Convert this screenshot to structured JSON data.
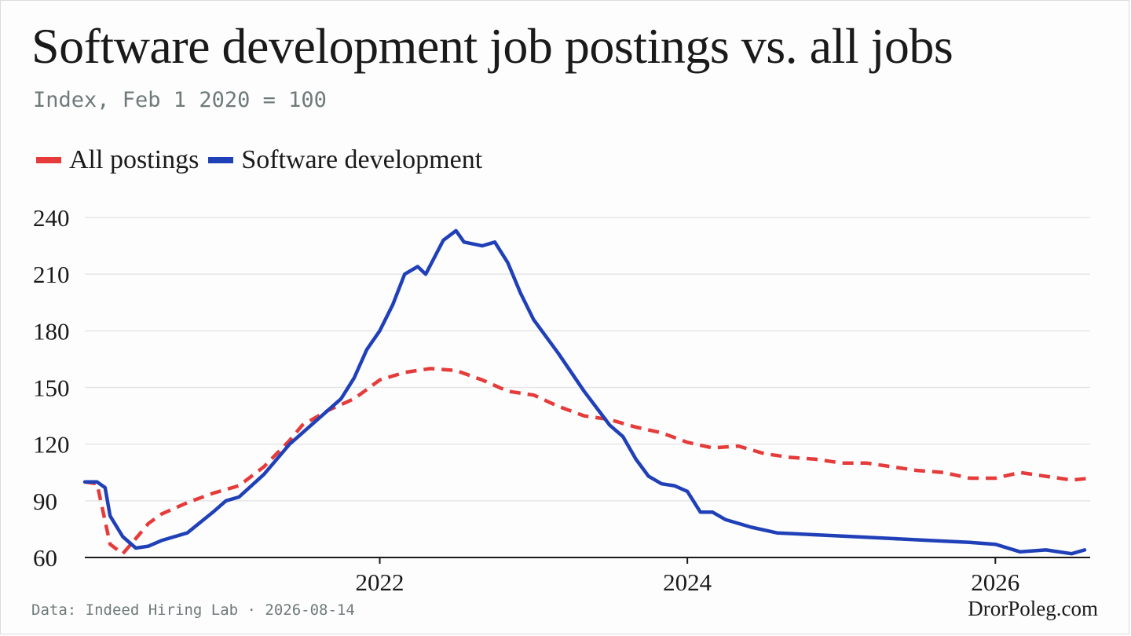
{
  "colors": {
    "all_postings": "#e63b3b",
    "software": "#2040b8",
    "grid": "#e6e6e6",
    "axis": "#1a1a1a"
  },
  "chart_data": {
    "type": "line",
    "title": "Software development job postings vs. all jobs",
    "subtitle": "Index, Feb 1 2020 = 100",
    "legend_placement": "top-left",
    "grid": true,
    "ylim": [
      60,
      240
    ],
    "xlim": [
      "2020-02-01",
      "2026-08-14"
    ],
    "y_ticks": [
      "60",
      "90",
      "120",
      "150",
      "180",
      "210",
      "240"
    ],
    "x_ticks": [
      {
        "date": "2022-01-01",
        "label": "2022"
      },
      {
        "date": "2024-01-01",
        "label": "2024"
      },
      {
        "date": "2026-01-01",
        "label": "2026"
      }
    ],
    "series": [
      {
        "name": "All postings",
        "style": "dashed",
        "color": "#e63b3b",
        "points": [
          [
            "2020-02-01",
            100
          ],
          [
            "2020-03-01",
            99
          ],
          [
            "2020-04-01",
            67
          ],
          [
            "2020-05-01",
            62
          ],
          [
            "2020-06-01",
            70
          ],
          [
            "2020-07-01",
            78
          ],
          [
            "2020-08-01",
            83
          ],
          [
            "2020-10-01",
            89
          ],
          [
            "2020-12-01",
            94
          ],
          [
            "2021-02-01",
            98
          ],
          [
            "2021-04-01",
            108
          ],
          [
            "2021-06-01",
            122
          ],
          [
            "2021-07-01",
            130
          ],
          [
            "2021-09-01",
            138
          ],
          [
            "2021-11-01",
            144
          ],
          [
            "2022-01-01",
            154
          ],
          [
            "2022-03-01",
            158
          ],
          [
            "2022-05-01",
            160
          ],
          [
            "2022-07-01",
            159
          ],
          [
            "2022-09-01",
            154
          ],
          [
            "2022-11-01",
            148
          ],
          [
            "2023-01-01",
            146
          ],
          [
            "2023-03-01",
            140
          ],
          [
            "2023-05-01",
            135
          ],
          [
            "2023-07-01",
            133
          ],
          [
            "2023-09-01",
            129
          ],
          [
            "2023-11-01",
            126
          ],
          [
            "2024-01-01",
            121
          ],
          [
            "2024-03-01",
            118
          ],
          [
            "2024-05-01",
            119
          ],
          [
            "2024-07-01",
            115
          ],
          [
            "2024-09-01",
            113
          ],
          [
            "2024-11-01",
            112
          ],
          [
            "2025-01-01",
            110
          ],
          [
            "2025-03-01",
            110
          ],
          [
            "2025-05-01",
            108
          ],
          [
            "2025-07-01",
            106
          ],
          [
            "2025-09-01",
            105
          ],
          [
            "2025-11-01",
            102
          ],
          [
            "2026-01-01",
            102
          ],
          [
            "2026-03-01",
            105
          ],
          [
            "2026-05-01",
            103
          ],
          [
            "2026-07-01",
            101
          ],
          [
            "2026-08-14",
            102
          ]
        ]
      },
      {
        "name": "Software development",
        "style": "solid",
        "color": "#2040b8",
        "points": [
          [
            "2020-02-01",
            100
          ],
          [
            "2020-03-01",
            100
          ],
          [
            "2020-03-20",
            97
          ],
          [
            "2020-04-01",
            82
          ],
          [
            "2020-05-01",
            71
          ],
          [
            "2020-06-01",
            65
          ],
          [
            "2020-07-01",
            66
          ],
          [
            "2020-08-01",
            69
          ],
          [
            "2020-10-01",
            73
          ],
          [
            "2020-12-01",
            84
          ],
          [
            "2021-01-01",
            90
          ],
          [
            "2021-02-01",
            92
          ],
          [
            "2021-04-01",
            104
          ],
          [
            "2021-06-01",
            120
          ],
          [
            "2021-08-01",
            132
          ],
          [
            "2021-10-01",
            144
          ],
          [
            "2021-11-01",
            155
          ],
          [
            "2021-12-01",
            170
          ],
          [
            "2022-01-01",
            180
          ],
          [
            "2022-02-01",
            194
          ],
          [
            "2022-03-01",
            210
          ],
          [
            "2022-04-01",
            214
          ],
          [
            "2022-04-20",
            210
          ],
          [
            "2022-06-01",
            228
          ],
          [
            "2022-07-01",
            233
          ],
          [
            "2022-07-20",
            227
          ],
          [
            "2022-09-01",
            225
          ],
          [
            "2022-10-01",
            227
          ],
          [
            "2022-11-01",
            216
          ],
          [
            "2022-12-01",
            200
          ],
          [
            "2023-01-01",
            186
          ],
          [
            "2023-03-01",
            168
          ],
          [
            "2023-05-01",
            148
          ],
          [
            "2023-07-01",
            130
          ],
          [
            "2023-08-01",
            124
          ],
          [
            "2023-09-01",
            112
          ],
          [
            "2023-10-01",
            103
          ],
          [
            "2023-11-01",
            99
          ],
          [
            "2023-12-01",
            98
          ],
          [
            "2024-01-01",
            95
          ],
          [
            "2024-02-01",
            84
          ],
          [
            "2024-03-01",
            84
          ],
          [
            "2024-04-01",
            80
          ],
          [
            "2024-06-01",
            76
          ],
          [
            "2024-08-01",
            73
          ],
          [
            "2024-11-01",
            72
          ],
          [
            "2025-02-01",
            71
          ],
          [
            "2025-05-01",
            70
          ],
          [
            "2025-08-01",
            69
          ],
          [
            "2025-11-01",
            68
          ],
          [
            "2026-01-01",
            67
          ],
          [
            "2026-03-01",
            63
          ],
          [
            "2026-05-01",
            64
          ],
          [
            "2026-07-01",
            62
          ],
          [
            "2026-08-01",
            64
          ]
        ]
      }
    ]
  },
  "footer": {
    "source": "Data: Indeed Hiring Lab · 2026-08-14",
    "brand": "DrorPoleg.com"
  }
}
